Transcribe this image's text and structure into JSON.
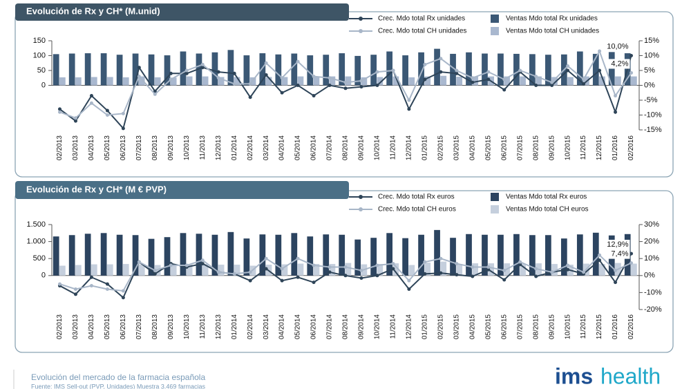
{
  "chart_data": [
    {
      "type": "bar",
      "title": "Evolución de Rx y CH* (M.unid)",
      "categories": [
        "02/2013",
        "03/2013",
        "04/2013",
        "05/2013",
        "06/2013",
        "07/2013",
        "08/2013",
        "09/2013",
        "10/2013",
        "11/2013",
        "12/2013",
        "01/2014",
        "02/2014",
        "03/2014",
        "04/2014",
        "05/2014",
        "06/2014",
        "07/2014",
        "08/2014",
        "09/2014",
        "10/2014",
        "11/2014",
        "12/2014",
        "01/2015",
        "02/2015",
        "03/2015",
        "04/2015",
        "05/2015",
        "06/2015",
        "07/2015",
        "08/2015",
        "09/2015",
        "10/2015",
        "11/2015",
        "12/2015",
        "01/2016",
        "02/2016"
      ],
      "series": [
        {
          "name": "Ventas Mdo total Rx unidades",
          "type": "bar",
          "color": "#3b5875",
          "values": [
            105,
            107,
            108,
            108,
            103,
            107,
            104,
            101,
            114,
            107,
            111,
            119,
            101,
            108,
            104,
            107,
            101,
            103,
            108,
            99,
            103,
            114,
            101,
            111,
            123,
            106,
            111,
            107,
            107,
            106,
            105,
            103,
            104,
            114,
            106,
            112,
            108
          ]
        },
        {
          "name": "Ventas Mdo total CH unidades",
          "type": "bar",
          "color": "#a9b8cf",
          "values": [
            27,
            27,
            28,
            28,
            27,
            30,
            27,
            26,
            30,
            30,
            28,
            28,
            27,
            28,
            28,
            30,
            30,
            30,
            30,
            27,
            28,
            30,
            27,
            30,
            32,
            29,
            30,
            30,
            30,
            30,
            30,
            28,
            28,
            30,
            30,
            30,
            30
          ]
        },
        {
          "name": "Crec. Mdo total Rx unidades",
          "type": "line",
          "axis": "y2",
          "color": "#2e4458",
          "values": [
            -8,
            -12,
            -3.5,
            -8.5,
            -14.5,
            6,
            -2,
            4,
            4,
            6,
            4.5,
            4,
            -4,
            3.5,
            -2.5,
            0,
            -3.5,
            0,
            -1,
            -0.5,
            0,
            5,
            -8,
            2,
            4.5,
            4,
            1,
            2,
            -1.5,
            4.5,
            0,
            0,
            5,
            0.5,
            5,
            -9,
            10
          ],
          "value_labels": [
            null,
            null,
            null,
            null,
            null,
            null,
            null,
            null,
            null,
            null,
            null,
            null,
            null,
            null,
            null,
            null,
            null,
            null,
            null,
            null,
            null,
            null,
            null,
            null,
            null,
            null,
            null,
            null,
            null,
            null,
            null,
            null,
            null,
            null,
            null,
            null,
            "10,0%"
          ]
        },
        {
          "name": "Crec. Mdo total CH unidades",
          "type": "line",
          "axis": "y2",
          "color": "#a8b6c8",
          "values": [
            -9,
            -11,
            -6,
            -10,
            -9.5,
            3,
            -3,
            2,
            5,
            7,
            2.5,
            0.5,
            0.5,
            7.5,
            2.5,
            8,
            3,
            2.5,
            1,
            1.5,
            4.5,
            5,
            -5,
            7,
            9,
            5,
            2.5,
            4.5,
            2,
            5,
            3,
            1,
            6.5,
            2,
            11.5,
            -3.5,
            4.2
          ],
          "value_labels": [
            null,
            null,
            null,
            null,
            null,
            null,
            null,
            null,
            null,
            null,
            null,
            null,
            null,
            null,
            null,
            null,
            null,
            null,
            null,
            null,
            null,
            null,
            null,
            null,
            null,
            null,
            null,
            null,
            null,
            null,
            null,
            null,
            null,
            null,
            null,
            null,
            "4,2%"
          ]
        }
      ],
      "ylim": [
        -150,
        150
      ],
      "yticks": [
        0,
        50,
        100,
        150
      ],
      "y2lim": [
        -15,
        15
      ],
      "y2ticks": [
        {
          "value": -15,
          "label": "-15%"
        },
        {
          "value": -10,
          "label": "-10%"
        },
        {
          "value": -5,
          "label": "-5%"
        },
        {
          "value": 0,
          "label": "0%"
        },
        {
          "value": 5,
          "label": "5%"
        },
        {
          "value": 10,
          "label": "10%"
        },
        {
          "value": 15,
          "label": "15%"
        }
      ],
      "legend": "top"
    },
    {
      "type": "bar",
      "title": "Evolución de Rx y CH* (M € PVP)",
      "categories": [
        "02/2013",
        "03/2013",
        "04/2013",
        "05/2013",
        "06/2013",
        "07/2013",
        "08/2013",
        "09/2013",
        "10/2013",
        "11/2013",
        "12/2013",
        "01/2014",
        "02/2014",
        "03/2014",
        "04/2014",
        "05/2014",
        "06/2014",
        "07/2014",
        "08/2014",
        "09/2014",
        "10/2014",
        "11/2014",
        "12/2014",
        "01/2015",
        "02/2015",
        "03/2015",
        "04/2015",
        "05/2015",
        "06/2015",
        "07/2015",
        "08/2015",
        "09/2015",
        "10/2015",
        "11/2015",
        "12/2015",
        "01/2016",
        "02/2016"
      ],
      "series": [
        {
          "name": "Ventas Mdo total Rx euros",
          "type": "bar",
          "color": "#2c4460",
          "values": [
            1150,
            1190,
            1230,
            1250,
            1200,
            1190,
            1080,
            1130,
            1250,
            1230,
            1200,
            1280,
            1090,
            1210,
            1200,
            1250,
            1150,
            1210,
            1200,
            1060,
            1110,
            1250,
            1100,
            1200,
            1340,
            1110,
            1220,
            1200,
            1200,
            1220,
            1190,
            1190,
            1090,
            1210,
            1260,
            1180,
            1220
          ]
        },
        {
          "name": "Ventas Mdo total CH euros",
          "type": "bar",
          "color": "#c5cfdd",
          "values": [
            290,
            310,
            330,
            330,
            340,
            330,
            310,
            300,
            340,
            340,
            320,
            320,
            290,
            320,
            330,
            350,
            340,
            340,
            370,
            330,
            340,
            360,
            310,
            380,
            410,
            340,
            360,
            360,
            360,
            350,
            360,
            340,
            320,
            350,
            340,
            370,
            350
          ]
        },
        {
          "name": "Crec. Mdo total Rx euros",
          "type": "line",
          "axis": "y2",
          "color": "#2e4458",
          "values": [
            -6,
            -11,
            -1,
            -5,
            -13,
            8,
            1,
            7,
            5,
            7,
            2,
            1,
            -3,
            4,
            -3,
            -1,
            -4,
            2,
            0,
            -1.5,
            0,
            4,
            -8,
            1,
            1.5,
            0.5,
            -0.5,
            3.5,
            -2.5,
            6.5,
            -0.5,
            2,
            3.5,
            1,
            9,
            -4,
            12.9
          ],
          "value_labels": [
            null,
            null,
            null,
            null,
            null,
            null,
            null,
            null,
            null,
            null,
            null,
            null,
            null,
            null,
            null,
            null,
            null,
            null,
            null,
            null,
            null,
            null,
            null,
            null,
            null,
            null,
            null,
            null,
            null,
            null,
            null,
            null,
            null,
            null,
            null,
            null,
            "12,9%"
          ]
        },
        {
          "name": "Crec. Mdo total CH euros",
          "type": "line",
          "axis": "y2",
          "color": "#a8b6c8",
          "values": [
            -5,
            -8,
            -6,
            -8,
            -9,
            8,
            3,
            6,
            6,
            9,
            2,
            1,
            2,
            10,
            4,
            10,
            6,
            5,
            5,
            3,
            6,
            7,
            -3,
            8,
            10,
            7,
            5,
            5,
            3,
            8,
            4,
            2,
            6,
            2,
            12,
            3,
            7.4
          ],
          "value_labels": [
            null,
            null,
            null,
            null,
            null,
            null,
            null,
            null,
            null,
            null,
            null,
            null,
            null,
            null,
            null,
            null,
            null,
            null,
            null,
            null,
            null,
            null,
            null,
            null,
            null,
            null,
            null,
            null,
            null,
            null,
            null,
            null,
            null,
            null,
            null,
            null,
            "7,4%"
          ]
        }
      ],
      "ylim": [
        -1000,
        1500
      ],
      "yticks": [
        0,
        500,
        {
          "value": 1000,
          "label": "1.000"
        },
        {
          "value": 1500,
          "label": "1.500"
        }
      ],
      "y2lim": [
        -20,
        30
      ],
      "y2ticks": [
        {
          "value": -20,
          "label": "-20%"
        },
        {
          "value": -10,
          "label": "-10%"
        },
        {
          "value": 0,
          "label": "0%"
        },
        {
          "value": 10,
          "label": "10%"
        },
        {
          "value": 20,
          "label": "20%"
        },
        {
          "value": 30,
          "label": "30%"
        }
      ],
      "legend": "top"
    }
  ],
  "footer": {
    "text": "Evolución del mercado de la farmacia española",
    "source": "Fuente: IMS Sell-out (PVP, Unidades) Muestra 3.469 farmacias"
  },
  "logo": {
    "ims": "ims",
    "health": "health"
  }
}
